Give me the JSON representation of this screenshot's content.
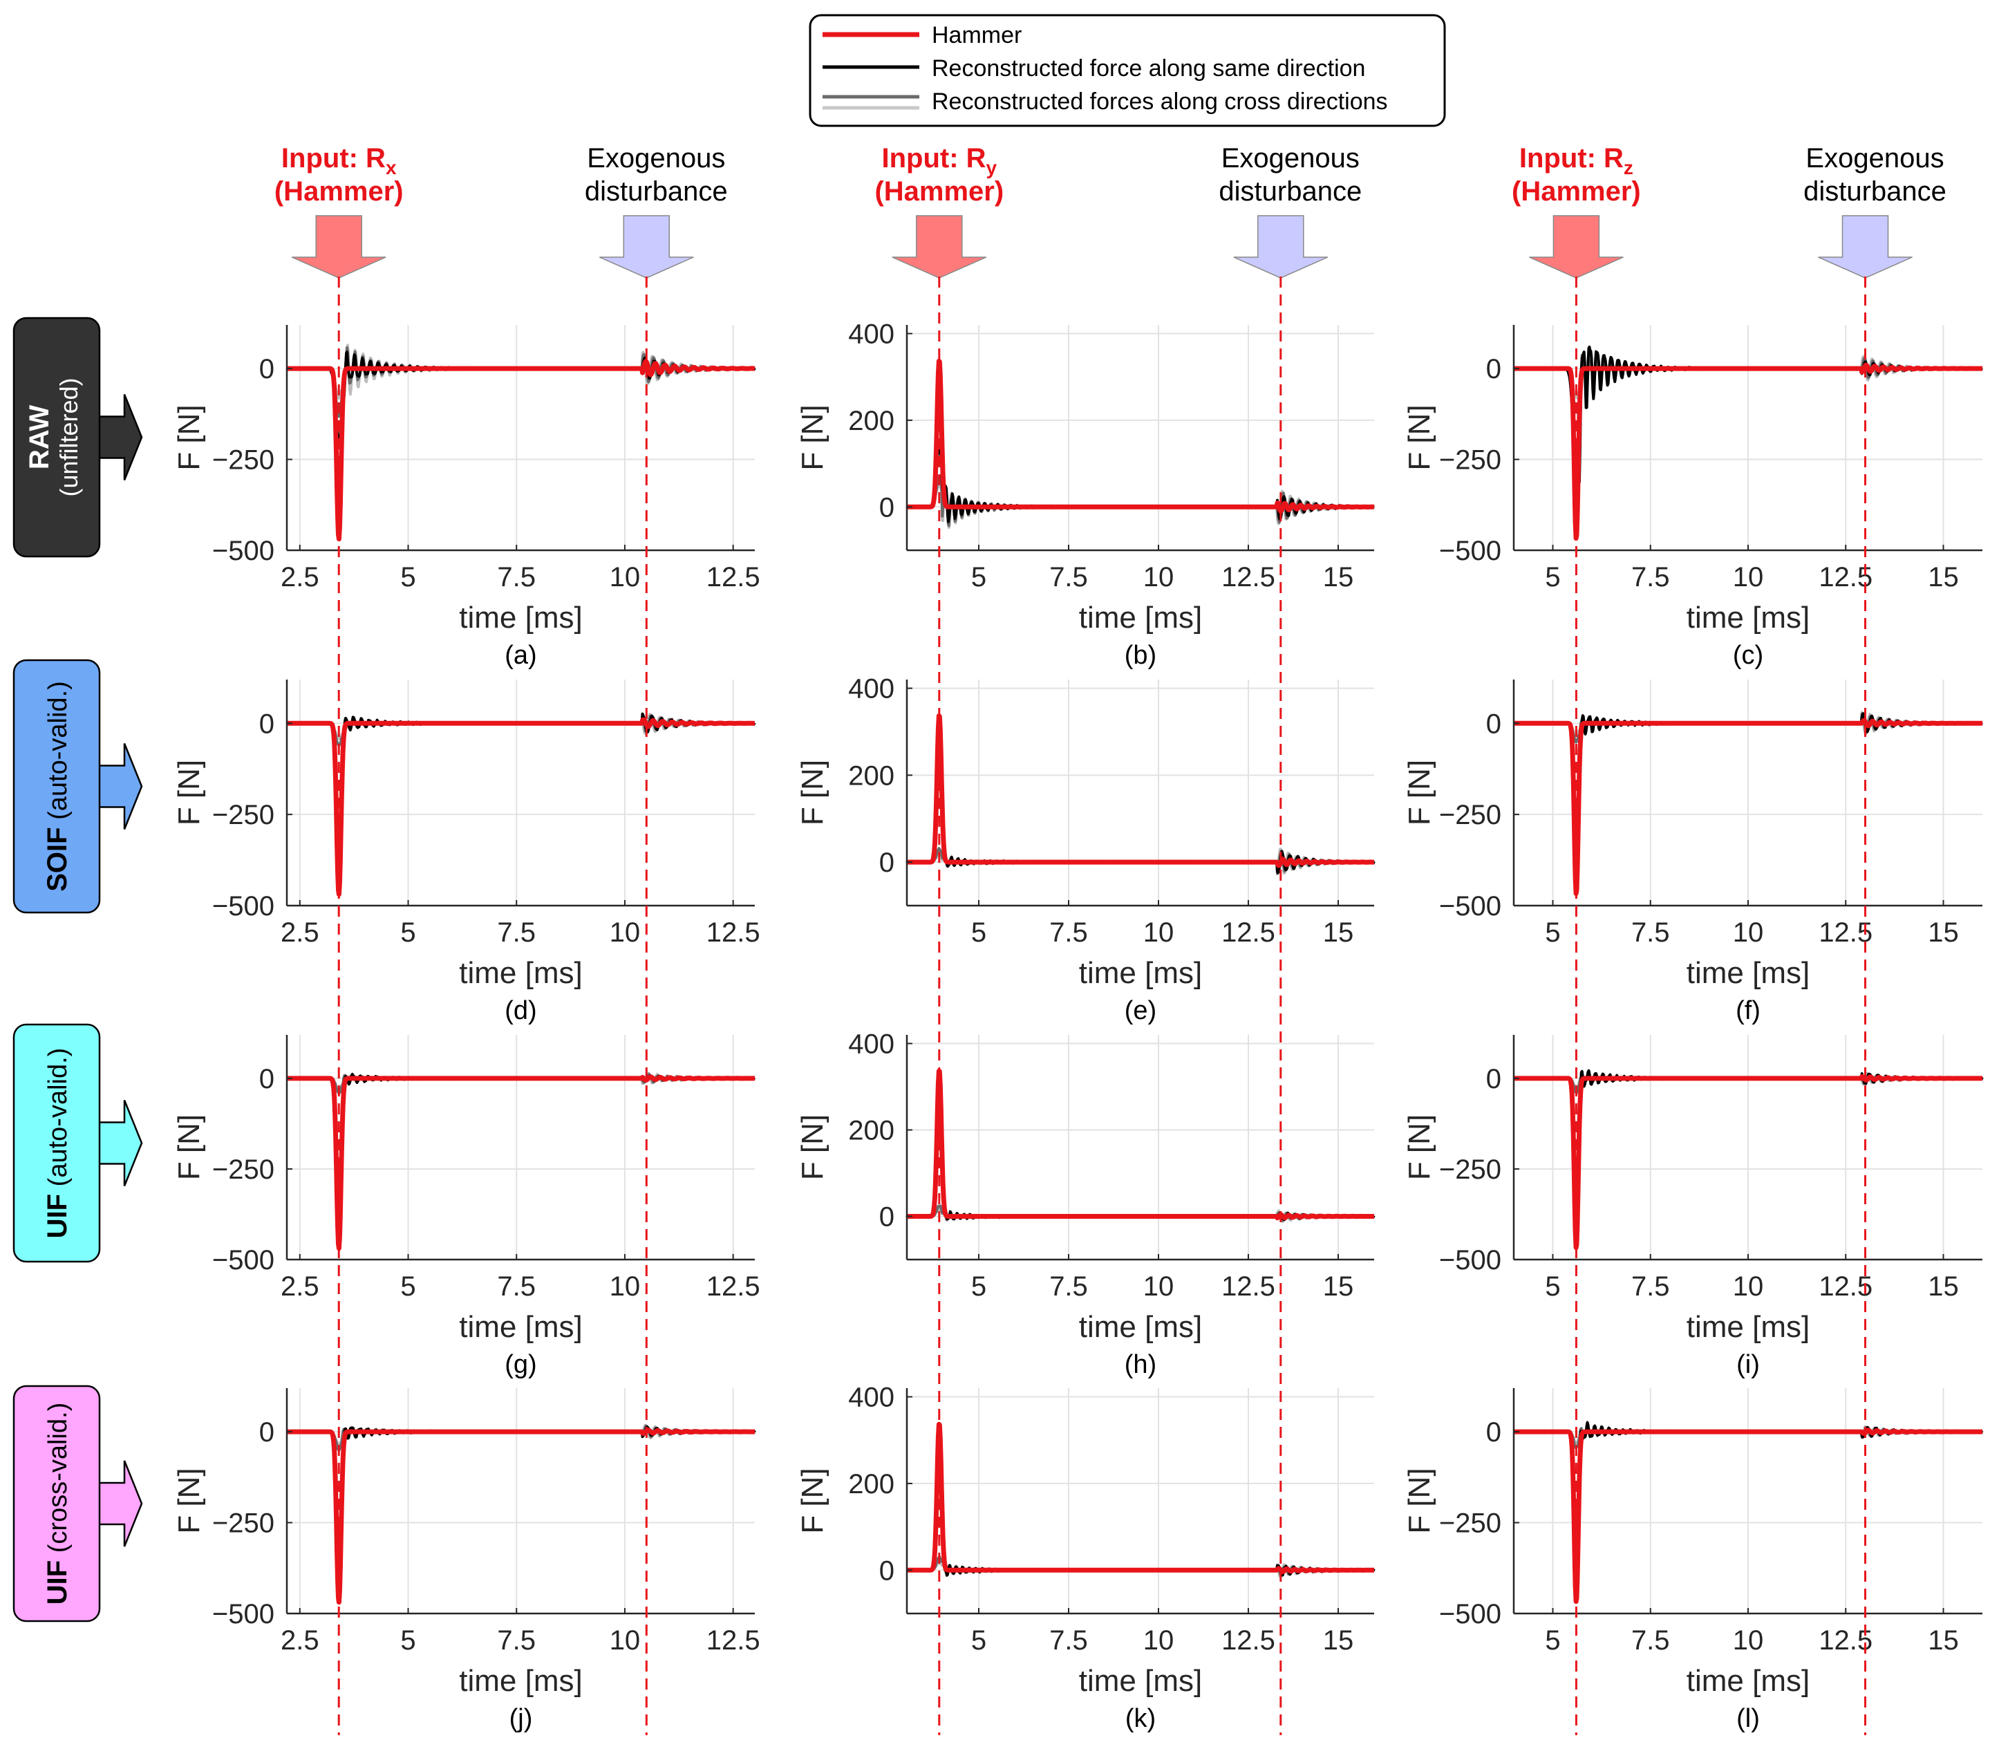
{
  "legend": {
    "entries": [
      {
        "label": "Hammer",
        "color": "#e8141a"
      },
      {
        "label": "Reconstructed force along same direction",
        "color": "#000000"
      },
      {
        "label": "Reconstructed forces along cross directions",
        "colors": [
          "#6a6a6a",
          "#c8c8c8"
        ]
      }
    ]
  },
  "colors": {
    "hammer": "#e8141a",
    "same_direction": "#000000",
    "cross_dark": "#6a6a6a",
    "cross_light": "#bdbdbd",
    "hammer_arrow": "#ff7b7b",
    "disturbance_arrow": "#c9caff",
    "raw": "#333333",
    "soif": "#6fa8f5",
    "uif_auto": "#80ffff",
    "uif_cross": "#ffa6ff"
  },
  "columns": [
    {
      "input_prefix": "Input: R",
      "input_sub": "x",
      "input_line2": "(Hammer)",
      "disturbance_line1": "Exogenous",
      "disturbance_line2": "disturbance"
    },
    {
      "input_prefix": "Input: R",
      "input_sub": "y",
      "input_line2": "(Hammer)",
      "disturbance_line1": "Exogenous",
      "disturbance_line2": "disturbance"
    },
    {
      "input_prefix": "Input: R",
      "input_sub": "z",
      "input_line2": "(Hammer)",
      "disturbance_line1": "Exogenous",
      "disturbance_line2": "disturbance"
    }
  ],
  "rows": [
    {
      "name_bold": "RAW",
      "name_rest": "(unfiltered)",
      "color": "#333333",
      "text_color": "#ffffff",
      "two_line": true
    },
    {
      "name_bold": "SOIF",
      "name_rest": " (auto-valid.)",
      "color": "#6fa8f5",
      "text_color": "#000000",
      "two_line": false
    },
    {
      "name_bold": "UIF",
      "name_rest": " (auto-valid.)",
      "color": "#80ffff",
      "text_color": "#000000",
      "two_line": false
    },
    {
      "name_bold": "UIF",
      "name_rest": " (cross-valid.)",
      "color": "#ffa6ff",
      "text_color": "#000000",
      "two_line": false
    }
  ],
  "chart_data": [
    {
      "type": "line",
      "panel": "(a)",
      "xlabel": "time [ms]",
      "ylabel": "F [N]",
      "xlim": [
        2.2,
        13
      ],
      "ylim": [
        -500,
        120
      ],
      "xticks": [
        2.5,
        5,
        7.5,
        10,
        12.5
      ],
      "yticks": [
        -500,
        -250,
        0
      ],
      "xtick_labels": [
        "2.5",
        "5",
        "7.5",
        "10",
        "12.5"
      ],
      "ytick_labels": [
        "−500",
        "−250",
        "0"
      ],
      "grid": true,
      "hammer_time": 3.4,
      "disturbance_time": 10.5,
      "series": [
        {
          "role": "hammer",
          "peak": -470,
          "width": 0.05,
          "osc": 12,
          "dist_amp": 20
        },
        {
          "role": "same",
          "peak": -200,
          "width": 0.07,
          "osc": 45,
          "dist_amp": 30
        },
        {
          "role": "cross_dark",
          "peak": -130,
          "width": 0.07,
          "osc": 55,
          "dist_amp": 40
        },
        {
          "role": "cross_light",
          "peak": -80,
          "width": 0.08,
          "osc": 75,
          "dist_amp": 45
        }
      ]
    },
    {
      "type": "line",
      "panel": "(b)",
      "xlabel": "time [ms]",
      "ylabel": "F [N]",
      "xlim": [
        3,
        16
      ],
      "ylim": [
        -100,
        420
      ],
      "xticks": [
        5,
        7.5,
        10,
        12.5,
        15
      ],
      "yticks": [
        0,
        200,
        400
      ],
      "xtick_labels": [
        "5",
        "7.5",
        "10",
        "12.5",
        "15"
      ],
      "ytick_labels": [
        "0",
        "200",
        "400"
      ],
      "grid": true,
      "hammer_time": 3.9,
      "disturbance_time": 13.4,
      "series": [
        {
          "role": "hammer",
          "peak": 340,
          "width": 0.06,
          "osc": 10,
          "dist_amp": 10
        },
        {
          "role": "same",
          "peak": 140,
          "width": 0.08,
          "osc": 40,
          "dist_amp": 30
        },
        {
          "role": "cross_dark",
          "peak": 70,
          "width": 0.08,
          "osc": 45,
          "dist_amp": 35
        },
        {
          "role": "cross_light",
          "peak": 50,
          "width": 0.09,
          "osc": 50,
          "dist_amp": 40
        }
      ]
    },
    {
      "type": "line",
      "panel": "(c)",
      "xlabel": "time [ms]",
      "ylabel": "F [N]",
      "xlim": [
        4,
        16
      ],
      "ylim": [
        -500,
        120
      ],
      "xticks": [
        5,
        7.5,
        10,
        12.5,
        15
      ],
      "yticks": [
        -500,
        -250,
        0
      ],
      "xtick_labels": [
        "5",
        "7.5",
        "10",
        "12.5",
        "15"
      ],
      "ytick_labels": [
        "−500",
        "−250",
        "0"
      ],
      "grid": true,
      "hammer_time": 5.6,
      "disturbance_time": 13.0,
      "series": [
        {
          "role": "hammer",
          "peak": -470,
          "width": 0.05,
          "osc": 12,
          "dist_amp": 10
        },
        {
          "role": "same",
          "peak": -260,
          "width": 0.08,
          "osc": 110,
          "dist_amp": 20
        },
        {
          "role": "cross_dark",
          "peak": -120,
          "width": 0.08,
          "osc": 60,
          "dist_amp": 30
        },
        {
          "role": "cross_light",
          "peak": -80,
          "width": 0.09,
          "osc": 40,
          "dist_amp": 35
        }
      ]
    },
    {
      "type": "line",
      "panel": "(d)",
      "xlabel": "time [ms]",
      "ylabel": "F [N]",
      "xlim": [
        2.2,
        13
      ],
      "ylim": [
        -500,
        120
      ],
      "xticks": [
        2.5,
        5,
        7.5,
        10,
        12.5
      ],
      "yticks": [
        -500,
        -250,
        0
      ],
      "xtick_labels": [
        "2.5",
        "5",
        "7.5",
        "10",
        "12.5"
      ],
      "ytick_labels": [
        "−500",
        "−250",
        "0"
      ],
      "grid": true,
      "hammer_time": 3.4,
      "disturbance_time": 10.5,
      "series": [
        {
          "role": "hammer",
          "peak": -470,
          "width": 0.05,
          "osc": 8,
          "dist_amp": 10
        },
        {
          "role": "same",
          "peak": -380,
          "width": 0.055,
          "osc": 20,
          "dist_amp": 25
        },
        {
          "role": "cross_dark",
          "peak": -60,
          "width": 0.07,
          "osc": 15,
          "dist_amp": 25
        },
        {
          "role": "cross_light",
          "peak": -40,
          "width": 0.08,
          "osc": 15,
          "dist_amp": 30
        }
      ]
    },
    {
      "type": "line",
      "panel": "(e)",
      "xlabel": "time [ms]",
      "ylabel": "F [N]",
      "xlim": [
        3,
        16
      ],
      "ylim": [
        -100,
        420
      ],
      "xticks": [
        5,
        7.5,
        10,
        12.5,
        15
      ],
      "yticks": [
        0,
        200,
        400
      ],
      "xtick_labels": [
        "5",
        "7.5",
        "10",
        "12.5",
        "15"
      ],
      "ytick_labels": [
        "0",
        "200",
        "400"
      ],
      "grid": true,
      "hammer_time": 3.9,
      "disturbance_time": 13.4,
      "series": [
        {
          "role": "hammer",
          "peak": 340,
          "width": 0.06,
          "osc": 6,
          "dist_amp": 8
        },
        {
          "role": "same",
          "peak": 280,
          "width": 0.06,
          "osc": 12,
          "dist_amp": 25
        },
        {
          "role": "cross_dark",
          "peak": 30,
          "width": 0.07,
          "osc": 10,
          "dist_amp": 25
        },
        {
          "role": "cross_light",
          "peak": 20,
          "width": 0.08,
          "osc": 10,
          "dist_amp": 30
        }
      ]
    },
    {
      "type": "line",
      "panel": "(f)",
      "xlabel": "time [ms]",
      "ylabel": "F [N]",
      "xlim": [
        4,
        16
      ],
      "ylim": [
        -500,
        120
      ],
      "xticks": [
        5,
        7.5,
        10,
        12.5,
        15
      ],
      "yticks": [
        -500,
        -250,
        0
      ],
      "xtick_labels": [
        "5",
        "7.5",
        "10",
        "12.5",
        "15"
      ],
      "ytick_labels": [
        "−500",
        "−250",
        "0"
      ],
      "grid": true,
      "hammer_time": 5.6,
      "disturbance_time": 13.0,
      "series": [
        {
          "role": "hammer",
          "peak": -470,
          "width": 0.05,
          "osc": 8,
          "dist_amp": 8
        },
        {
          "role": "same",
          "peak": -400,
          "width": 0.055,
          "osc": 30,
          "dist_amp": 25
        },
        {
          "role": "cross_dark",
          "peak": -50,
          "width": 0.07,
          "osc": 15,
          "dist_amp": 25
        },
        {
          "role": "cross_light",
          "peak": -30,
          "width": 0.08,
          "osc": 15,
          "dist_amp": 30
        }
      ]
    },
    {
      "type": "line",
      "panel": "(g)",
      "xlabel": "time [ms]",
      "ylabel": "F [N]",
      "xlim": [
        2.2,
        13
      ],
      "ylim": [
        -500,
        120
      ],
      "xticks": [
        2.5,
        5,
        7.5,
        10,
        12.5
      ],
      "yticks": [
        -500,
        -250,
        0
      ],
      "xtick_labels": [
        "2.5",
        "5",
        "7.5",
        "10",
        "12.5"
      ],
      "ytick_labels": [
        "−500",
        "−250",
        "0"
      ],
      "grid": true,
      "hammer_time": 3.4,
      "disturbance_time": 10.5,
      "series": [
        {
          "role": "hammer",
          "peak": -470,
          "width": 0.05,
          "osc": 6,
          "dist_amp": 5
        },
        {
          "role": "same",
          "peak": -420,
          "width": 0.05,
          "osc": 15,
          "dist_amp": 8
        },
        {
          "role": "cross_dark",
          "peak": -40,
          "width": 0.06,
          "osc": 10,
          "dist_amp": 12
        },
        {
          "role": "cross_light",
          "peak": -30,
          "width": 0.07,
          "osc": 10,
          "dist_amp": 15
        }
      ]
    },
    {
      "type": "line",
      "panel": "(h)",
      "xlabel": "time [ms]",
      "ylabel": "F [N]",
      "xlim": [
        3,
        16
      ],
      "ylim": [
        -100,
        420
      ],
      "xticks": [
        5,
        7.5,
        10,
        12.5,
        15
      ],
      "yticks": [
        0,
        200,
        400
      ],
      "xtick_labels": [
        "5",
        "7.5",
        "10",
        "12.5",
        "15"
      ],
      "ytick_labels": [
        "0",
        "200",
        "400"
      ],
      "grid": true,
      "hammer_time": 3.9,
      "disturbance_time": 13.4,
      "series": [
        {
          "role": "hammer",
          "peak": 340,
          "width": 0.06,
          "osc": 5,
          "dist_amp": 4
        },
        {
          "role": "same",
          "peak": 310,
          "width": 0.06,
          "osc": 10,
          "dist_amp": 8
        },
        {
          "role": "cross_dark",
          "peak": 25,
          "width": 0.07,
          "osc": 8,
          "dist_amp": 10
        },
        {
          "role": "cross_light",
          "peak": 15,
          "width": 0.08,
          "osc": 8,
          "dist_amp": 12
        }
      ]
    },
    {
      "type": "line",
      "panel": "(i)",
      "xlabel": "time [ms]",
      "ylabel": "F [N]",
      "xlim": [
        4,
        16
      ],
      "ylim": [
        -500,
        120
      ],
      "xticks": [
        5,
        7.5,
        10,
        12.5,
        15
      ],
      "yticks": [
        -500,
        -250,
        0
      ],
      "xtick_labels": [
        "5",
        "7.5",
        "10",
        "12.5",
        "15"
      ],
      "ytick_labels": [
        "−500",
        "−250",
        "0"
      ],
      "grid": true,
      "hammer_time": 5.6,
      "disturbance_time": 13.0,
      "series": [
        {
          "role": "hammer",
          "peak": -470,
          "width": 0.05,
          "osc": 6,
          "dist_amp": 5
        },
        {
          "role": "same",
          "peak": -430,
          "width": 0.05,
          "osc": 25,
          "dist_amp": 15
        },
        {
          "role": "cross_dark",
          "peak": -40,
          "width": 0.06,
          "osc": 12,
          "dist_amp": 12
        },
        {
          "role": "cross_light",
          "peak": -25,
          "width": 0.07,
          "osc": 10,
          "dist_amp": 15
        }
      ]
    },
    {
      "type": "line",
      "panel": "(j)",
      "xlabel": "time [ms]",
      "ylabel": "F [N]",
      "xlim": [
        2.2,
        13
      ],
      "ylim": [
        -500,
        120
      ],
      "xticks": [
        2.5,
        5,
        7.5,
        10,
        12.5
      ],
      "yticks": [
        -500,
        -250,
        0
      ],
      "xtick_labels": [
        "2.5",
        "5",
        "7.5",
        "10",
        "12.5"
      ],
      "ytick_labels": [
        "−500",
        "−250",
        "0"
      ],
      "grid": true,
      "hammer_time": 3.4,
      "disturbance_time": 10.5,
      "series": [
        {
          "role": "hammer",
          "peak": -470,
          "width": 0.05,
          "osc": 6,
          "dist_amp": 5
        },
        {
          "role": "same",
          "peak": -410,
          "width": 0.05,
          "osc": 18,
          "dist_amp": 12
        },
        {
          "role": "cross_dark",
          "peak": -50,
          "width": 0.06,
          "osc": 15,
          "dist_amp": 15
        },
        {
          "role": "cross_light",
          "peak": -35,
          "width": 0.07,
          "osc": 12,
          "dist_amp": 18
        }
      ]
    },
    {
      "type": "line",
      "panel": "(k)",
      "xlabel": "time [ms]",
      "ylabel": "F [N]",
      "xlim": [
        3,
        16
      ],
      "ylim": [
        -100,
        420
      ],
      "xticks": [
        5,
        7.5,
        10,
        12.5,
        15
      ],
      "yticks": [
        0,
        200,
        400
      ],
      "xtick_labels": [
        "5",
        "7.5",
        "10",
        "12.5",
        "15"
      ],
      "ytick_labels": [
        "0",
        "200",
        "400"
      ],
      "grid": true,
      "hammer_time": 3.9,
      "disturbance_time": 13.4,
      "series": [
        {
          "role": "hammer",
          "peak": 340,
          "width": 0.06,
          "osc": 5,
          "dist_amp": 4
        },
        {
          "role": "same",
          "peak": 300,
          "width": 0.06,
          "osc": 12,
          "dist_amp": 12
        },
        {
          "role": "cross_dark",
          "peak": 30,
          "width": 0.07,
          "osc": 10,
          "dist_amp": 12
        },
        {
          "role": "cross_light",
          "peak": 18,
          "width": 0.08,
          "osc": 10,
          "dist_amp": 15
        }
      ]
    },
    {
      "type": "line",
      "panel": "(l)",
      "xlabel": "time [ms]",
      "ylabel": "F [N]",
      "xlim": [
        4,
        16
      ],
      "ylim": [
        -500,
        120
      ],
      "xticks": [
        5,
        7.5,
        10,
        12.5,
        15
      ],
      "yticks": [
        -500,
        -250,
        0
      ],
      "xtick_labels": [
        "5",
        "7.5",
        "10",
        "12.5",
        "15"
      ],
      "ytick_labels": [
        "−500",
        "−250",
        "0"
      ],
      "grid": true,
      "hammer_time": 5.6,
      "disturbance_time": 13.0,
      "series": [
        {
          "role": "hammer",
          "peak": -470,
          "width": 0.05,
          "osc": 6,
          "dist_amp": 5
        },
        {
          "role": "same",
          "peak": -420,
          "width": 0.05,
          "osc": 25,
          "dist_amp": 15
        },
        {
          "role": "cross_dark",
          "peak": -45,
          "width": 0.06,
          "osc": 12,
          "dist_amp": 12
        },
        {
          "role": "cross_light",
          "peak": -30,
          "width": 0.07,
          "osc": 10,
          "dist_amp": 15
        }
      ]
    }
  ]
}
